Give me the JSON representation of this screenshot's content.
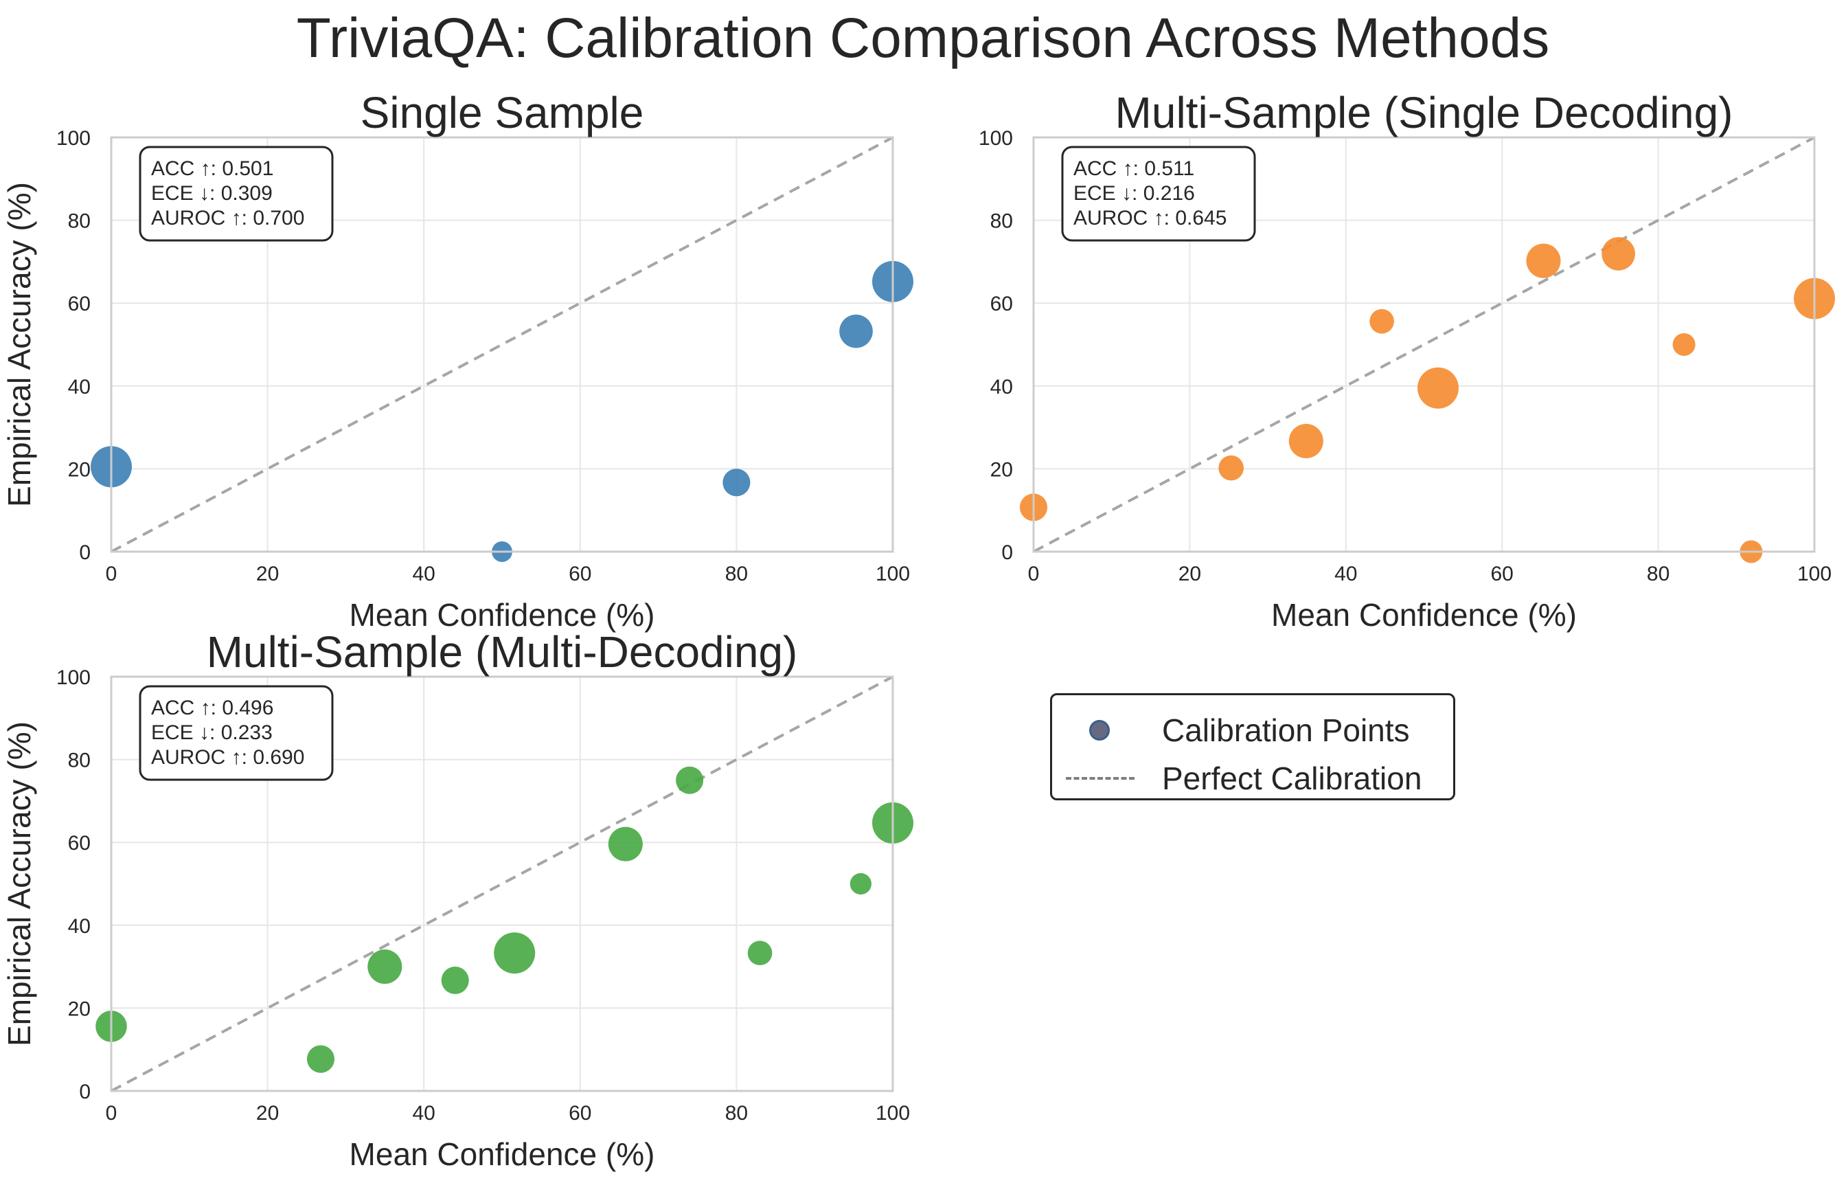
{
  "figure": {
    "title": "TriviaQA: Calibration Comparison Across Methods"
  },
  "chart_data": [
    {
      "type": "scatter",
      "title": "Single Sample",
      "xlabel": "Mean Confidence (%)",
      "ylabel": "Empirical Accuracy (%)",
      "xlim": [
        0,
        100
      ],
      "ylim": [
        0,
        100
      ],
      "xticks": [
        "0",
        "20",
        "40",
        "60",
        "80",
        "100"
      ],
      "yticks": [
        "0",
        "20",
        "40",
        "60",
        "80",
        "100"
      ],
      "grid": true,
      "color": "#3c7fb5",
      "metrics": [
        "ACC ↑: 0.501",
        "ECE ↓: 0.309",
        "AUROC ↑: 0.700"
      ],
      "points": [
        {
          "x": 0.0,
          "y": 20.5,
          "size": 1
        },
        {
          "x": 50.0,
          "y": 0.0,
          "size": 0.1
        },
        {
          "x": 80.0,
          "y": 16.7,
          "size": 0.3
        },
        {
          "x": 95.3,
          "y": 53.2,
          "size": 0.55
        },
        {
          "x": 100.0,
          "y": 65.2,
          "size": 1
        }
      ]
    },
    {
      "type": "scatter",
      "title": "Multi-Sample (Single Decoding)",
      "xlabel": "Mean Confidence (%)",
      "ylabel": "",
      "xlim": [
        0,
        100
      ],
      "ylim": [
        0,
        100
      ],
      "xticks": [
        "0",
        "20",
        "40",
        "60",
        "80",
        "100"
      ],
      "yticks": [
        "0",
        "20",
        "40",
        "60",
        "80",
        "100"
      ],
      "grid": true,
      "color": "#f58b2f",
      "metrics": [
        "ACC ↑: 0.511",
        "ECE ↓: 0.216",
        "AUROC ↑: 0.645"
      ],
      "points": [
        {
          "x": 0.0,
          "y": 10.7,
          "size": 0.3
        },
        {
          "x": 25.3,
          "y": 20.2,
          "size": 0.22
        },
        {
          "x": 34.9,
          "y": 26.7,
          "size": 0.6
        },
        {
          "x": 44.6,
          "y": 55.6,
          "size": 0.2
        },
        {
          "x": 51.8,
          "y": 39.5,
          "size": 1
        },
        {
          "x": 65.3,
          "y": 70.2,
          "size": 0.6
        },
        {
          "x": 74.9,
          "y": 71.9,
          "size": 0.55
        },
        {
          "x": 83.3,
          "y": 50.0,
          "size": 0.15
        },
        {
          "x": 91.9,
          "y": 0.0,
          "size": 0.15
        },
        {
          "x": 100.0,
          "y": 61.1,
          "size": 1
        }
      ]
    },
    {
      "type": "scatter",
      "title": "Multi-Sample (Multi-Decoding)",
      "xlabel": "Mean Confidence (%)",
      "ylabel": "Empirical Accuracy (%)",
      "xlim": [
        0,
        100
      ],
      "ylim": [
        0,
        100
      ],
      "xticks": [
        "0",
        "20",
        "40",
        "60",
        "80",
        "100"
      ],
      "yticks": [
        "0",
        "20",
        "40",
        "60",
        "80",
        "100"
      ],
      "grid": true,
      "color": "#47a843",
      "metrics": [
        "ACC ↑: 0.496",
        "ECE ↓: 0.233",
        "AUROC ↑: 0.690"
      ],
      "points": [
        {
          "x": 0.0,
          "y": 15.6,
          "size": 0.45
        },
        {
          "x": 26.8,
          "y": 7.7,
          "size": 0.3
        },
        {
          "x": 35.0,
          "y": 30.0,
          "size": 0.6
        },
        {
          "x": 44.0,
          "y": 26.7,
          "size": 0.3
        },
        {
          "x": 51.6,
          "y": 33.3,
          "size": 1
        },
        {
          "x": 65.8,
          "y": 59.6,
          "size": 0.6
        },
        {
          "x": 74.0,
          "y": 75.0,
          "size": 0.3
        },
        {
          "x": 83.0,
          "y": 33.3,
          "size": 0.2
        },
        {
          "x": 95.9,
          "y": 50.0,
          "size": 0.12
        },
        {
          "x": 100.0,
          "y": 64.7,
          "size": 1
        }
      ]
    }
  ],
  "legend": {
    "placement": "right of bottom-left subplot",
    "items": [
      "Calibration Points",
      "Perfect Calibration"
    ]
  }
}
